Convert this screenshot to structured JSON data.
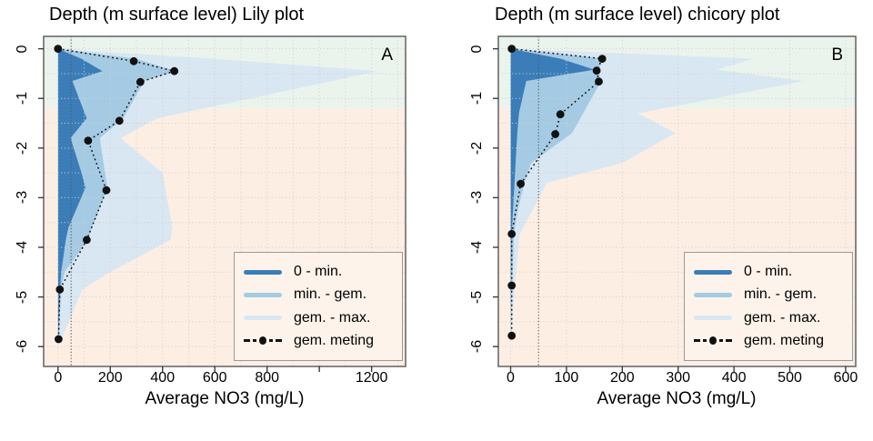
{
  "colors": {
    "band_dark": "#3a7db9",
    "band_mid": "#a4cbe3",
    "band_pale": "#d9e7f3",
    "bg_surface_green": "#ebf4ec",
    "bg_deep_pink": "#fdeee3",
    "legend_bg": "#fdf3eb",
    "grid": "#cfcfcf",
    "reference_line": "#5a5a5a",
    "plot_border": "#6b6b6b",
    "tick": "#3a3a3a",
    "meting": "#111111"
  },
  "legend": {
    "items": [
      {
        "label": "0 - min.",
        "swatch": "line",
        "color": "#3a7db9"
      },
      {
        "label": "min. - gem.",
        "swatch": "line",
        "color": "#a4cbe3"
      },
      {
        "label": "gem. - max.",
        "swatch": "line",
        "color": "#d9e7f3"
      },
      {
        "label": "gem. meting",
        "swatch": "dashed-dot",
        "color": "#111111"
      }
    ]
  },
  "chart_data": [
    {
      "type": "area",
      "title": "Depth (m surface level) Lily plot",
      "panel_label": "A",
      "xlabel": "Average NO3 (mg/L)",
      "x_domain": [
        -55,
        1330
      ],
      "y_domain": [
        0.25,
        -6.4
      ],
      "x_ticks": [
        {
          "value": 0,
          "label": "0"
        },
        {
          "value": 200,
          "label": "200"
        },
        {
          "value": 400,
          "label": "400"
        },
        {
          "value": 600,
          "label": "600"
        },
        {
          "value": 800,
          "label": "800"
        },
        {
          "value": 1000,
          "label": ""
        },
        {
          "value": 1200,
          "label": "1200"
        }
      ],
      "y_ticks": [
        {
          "value": 0,
          "label": "0"
        },
        {
          "value": -1,
          "label": "-1"
        },
        {
          "value": -2,
          "label": "-2"
        },
        {
          "value": -3,
          "label": "-3"
        },
        {
          "value": -4,
          "label": "-4"
        },
        {
          "value": -5,
          "label": "-5"
        },
        {
          "value": -6,
          "label": "-6"
        }
      ],
      "grid_x_step": 100,
      "grid_y_step": 0.5,
      "reference_line_x": 50,
      "surface_zone_to_depth": -1.2,
      "bands": {
        "depths": [
          0,
          -0.2,
          -0.45,
          -0.65,
          -1.4,
          -1.8,
          -2.5,
          -2.8,
          -3.6,
          -3.85,
          -4.5,
          -4.85,
          -5.9
        ],
        "min": [
          0,
          90,
          170,
          55,
          110,
          48,
          90,
          105,
          40,
          30,
          12,
          8,
          1
        ],
        "gem": [
          0,
          300,
          450,
          330,
          250,
          160,
          180,
          190,
          130,
          115,
          25,
          12,
          2
        ],
        "max": [
          0,
          600,
          1225,
          1050,
          380,
          240,
          400,
          410,
          438,
          430,
          200,
          93,
          10
        ]
      },
      "meting_points": [
        [
          0,
          0
        ],
        [
          290,
          -0.25
        ],
        [
          445,
          -0.45
        ],
        [
          315,
          -0.67
        ],
        [
          235,
          -1.45
        ],
        [
          115,
          -1.85
        ],
        [
          185,
          -2.85
        ],
        [
          110,
          -3.85
        ],
        [
          7,
          -4.85
        ],
        [
          2,
          -5.85
        ]
      ]
    },
    {
      "type": "area",
      "title": "Depth (m surface level) chicory plot",
      "panel_label": "B",
      "xlabel": "Average NO3 (mg/L)",
      "x_domain": [
        -22,
        618
      ],
      "y_domain": [
        0.25,
        -6.4
      ],
      "x_ticks": [
        {
          "value": 0,
          "label": "0"
        },
        {
          "value": 100,
          "label": "100"
        },
        {
          "value": 200,
          "label": "200"
        },
        {
          "value": 300,
          "label": "300"
        },
        {
          "value": 400,
          "label": "400"
        },
        {
          "value": 500,
          "label": "500"
        },
        {
          "value": 600,
          "label": "600"
        }
      ],
      "y_ticks": [
        {
          "value": 0,
          "label": "0"
        },
        {
          "value": -1,
          "label": "-1"
        },
        {
          "value": -2,
          "label": "-2"
        },
        {
          "value": -3,
          "label": "-3"
        },
        {
          "value": -4,
          "label": "-4"
        },
        {
          "value": -5,
          "label": "-5"
        },
        {
          "value": -6,
          "label": "-6"
        }
      ],
      "grid_x_step": 100,
      "grid_y_step": 0.5,
      "reference_line_x": 50,
      "surface_zone_to_depth": -1.2,
      "bands": {
        "depths": [
          0,
          -0.2,
          -0.42,
          -0.65,
          -1.3,
          -1.7,
          -2.3,
          -2.7,
          -3.3,
          -3.75,
          -4.75,
          -5.7
        ],
        "min": [
          0,
          90,
          150,
          28,
          15,
          12,
          9,
          7,
          4,
          2,
          1,
          0
        ],
        "gem": [
          0,
          168,
          157,
          162,
          130,
          110,
          37,
          25,
          12,
          6,
          3,
          1
        ],
        "max": [
          0,
          434,
          370,
          525,
          228,
          295,
          200,
          65,
          37,
          16,
          8,
          2
        ]
      },
      "meting_points": [
        [
          2,
          0
        ],
        [
          164,
          -0.2
        ],
        [
          154,
          -0.44
        ],
        [
          158,
          -0.66
        ],
        [
          89,
          -1.32
        ],
        [
          80,
          -1.72
        ],
        [
          18,
          -2.72
        ],
        [
          2,
          -3.73
        ],
        [
          2,
          -4.77
        ],
        [
          2,
          -5.78
        ]
      ]
    }
  ]
}
